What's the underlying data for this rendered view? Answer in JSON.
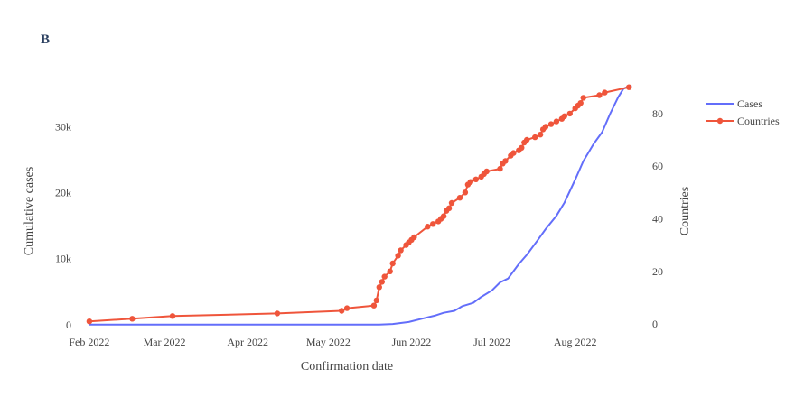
{
  "panel_label": "B",
  "chart_data": {
    "type": "line",
    "xlabel": "Confirmation date",
    "ylabel_left": "Cumulative cases",
    "ylabel_right": "Countries",
    "x_tick_labels": [
      {
        "date": "2022-02-01",
        "label": "Feb 2022"
      },
      {
        "date": "2022-03-01",
        "label": "Mar 2022"
      },
      {
        "date": "2022-04-01",
        "label": "Apr 2022"
      },
      {
        "date": "2022-05-01",
        "label": "May 2022"
      },
      {
        "date": "2022-06-01",
        "label": "Jun 2022"
      },
      {
        "date": "2022-07-01",
        "label": "Jul 2022"
      },
      {
        "date": "2022-08-01",
        "label": "Aug 2022"
      }
    ],
    "xlim": [
      "2022-01-27",
      "2022-08-27"
    ],
    "y_left": {
      "ticks": [
        0,
        10000,
        20000,
        30000
      ],
      "tick_labels": [
        "0",
        "10k",
        "20k",
        "30k"
      ],
      "ylim": [
        -300,
        37200
      ]
    },
    "y_right": {
      "ticks": [
        0,
        20,
        40,
        60,
        80
      ],
      "tick_labels": [
        "0",
        "20",
        "40",
        "60",
        "80"
      ],
      "ylim": [
        -1,
        93
      ]
    },
    "grid": false,
    "legend_position": "top-right",
    "series": [
      {
        "name": "Cases",
        "axis": "left",
        "color": "#636efa",
        "mode": "lines",
        "points": [
          [
            "2022-02-01",
            1
          ],
          [
            "2022-03-01",
            3
          ],
          [
            "2022-04-01",
            8
          ],
          [
            "2022-05-01",
            12
          ],
          [
            "2022-05-20",
            20
          ],
          [
            "2022-05-25",
            100
          ],
          [
            "2022-05-31",
            400
          ],
          [
            "2022-06-05",
            900
          ],
          [
            "2022-06-10",
            1400
          ],
          [
            "2022-06-13",
            1800
          ],
          [
            "2022-06-17",
            2100
          ],
          [
            "2022-06-20",
            2800
          ],
          [
            "2022-06-24",
            3300
          ],
          [
            "2022-06-27",
            4200
          ],
          [
            "2022-07-01",
            5200
          ],
          [
            "2022-07-04",
            6400
          ],
          [
            "2022-07-07",
            7000
          ],
          [
            "2022-07-11",
            9200
          ],
          [
            "2022-07-14",
            10600
          ],
          [
            "2022-07-18",
            12800
          ],
          [
            "2022-07-21",
            14500
          ],
          [
            "2022-07-25",
            16500
          ],
          [
            "2022-07-28",
            18500
          ],
          [
            "2022-08-01",
            22000
          ],
          [
            "2022-08-04",
            24800
          ],
          [
            "2022-08-08",
            27500
          ],
          [
            "2022-08-11",
            29200
          ],
          [
            "2022-08-14",
            32000
          ],
          [
            "2022-08-17",
            34500
          ],
          [
            "2022-08-19",
            35800
          ],
          [
            "2022-08-22",
            36300
          ]
        ]
      },
      {
        "name": "Countries",
        "axis": "right",
        "color": "#ef553b",
        "mode": "lines+markers",
        "points": [
          [
            "2022-02-01",
            1
          ],
          [
            "2022-02-17",
            2
          ],
          [
            "2022-03-04",
            3
          ],
          [
            "2022-04-12",
            4
          ],
          [
            "2022-05-06",
            5
          ],
          [
            "2022-05-08",
            6
          ],
          [
            "2022-05-18",
            7
          ],
          [
            "2022-05-19",
            9
          ],
          [
            "2022-05-20",
            14
          ],
          [
            "2022-05-21",
            16
          ],
          [
            "2022-05-22",
            18
          ],
          [
            "2022-05-24",
            20
          ],
          [
            "2022-05-25",
            23
          ],
          [
            "2022-05-27",
            26
          ],
          [
            "2022-05-28",
            28
          ],
          [
            "2022-05-30",
            30
          ],
          [
            "2022-05-31",
            31
          ],
          [
            "2022-06-01",
            32
          ],
          [
            "2022-06-02",
            33
          ],
          [
            "2022-06-07",
            37
          ],
          [
            "2022-06-09",
            38
          ],
          [
            "2022-06-11",
            39
          ],
          [
            "2022-06-12",
            40
          ],
          [
            "2022-06-13",
            41
          ],
          [
            "2022-06-14",
            43
          ],
          [
            "2022-06-15",
            44
          ],
          [
            "2022-06-16",
            46
          ],
          [
            "2022-06-19",
            48
          ],
          [
            "2022-06-21",
            50
          ],
          [
            "2022-06-22",
            53
          ],
          [
            "2022-06-23",
            54
          ],
          [
            "2022-06-25",
            55
          ],
          [
            "2022-06-27",
            56
          ],
          [
            "2022-06-28",
            57
          ],
          [
            "2022-06-29",
            58
          ],
          [
            "2022-07-04",
            59
          ],
          [
            "2022-07-05",
            61
          ],
          [
            "2022-07-06",
            62
          ],
          [
            "2022-07-08",
            64
          ],
          [
            "2022-07-09",
            65
          ],
          [
            "2022-07-11",
            66
          ],
          [
            "2022-07-12",
            67
          ],
          [
            "2022-07-13",
            69
          ],
          [
            "2022-07-14",
            70
          ],
          [
            "2022-07-17",
            71
          ],
          [
            "2022-07-19",
            72
          ],
          [
            "2022-07-20",
            74
          ],
          [
            "2022-07-21",
            75
          ],
          [
            "2022-07-23",
            76
          ],
          [
            "2022-07-25",
            77
          ],
          [
            "2022-07-27",
            78
          ],
          [
            "2022-07-28",
            79
          ],
          [
            "2022-07-30",
            80
          ],
          [
            "2022-08-01",
            82
          ],
          [
            "2022-08-02",
            83
          ],
          [
            "2022-08-03",
            84
          ],
          [
            "2022-08-04",
            86
          ],
          [
            "2022-08-10",
            87
          ],
          [
            "2022-08-12",
            88
          ],
          [
            "2022-08-21",
            90
          ]
        ]
      }
    ]
  }
}
